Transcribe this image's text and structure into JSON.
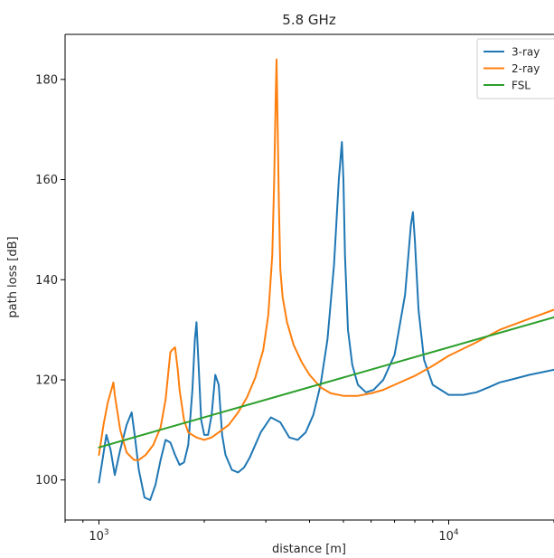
{
  "chart_data": {
    "type": "line",
    "title": "5.8 GHz",
    "xlabel": "distance [m]",
    "ylabel": "path loss [dB]",
    "xscale": "log",
    "xlim": [
      800,
      20000
    ],
    "ylim": [
      92,
      189
    ],
    "xticks": [
      {
        "value": 1000,
        "base": "10",
        "exp": "3"
      },
      {
        "value": 10000,
        "base": "10",
        "exp": "4"
      }
    ],
    "yticks": [
      100,
      120,
      140,
      160,
      180
    ],
    "grid": false,
    "legend": "top-right",
    "series": [
      {
        "name": "3-ray",
        "color": "#1f77b4",
        "x": [
          1000,
          1050,
          1080,
          1110,
          1150,
          1200,
          1240,
          1270,
          1300,
          1350,
          1400,
          1450,
          1500,
          1550,
          1600,
          1650,
          1700,
          1750,
          1800,
          1850,
          1880,
          1900,
          1930,
          1960,
          2000,
          2050,
          2100,
          2150,
          2200,
          2250,
          2300,
          2400,
          2500,
          2600,
          2700,
          2900,
          3100,
          3300,
          3500,
          3700,
          3900,
          4100,
          4300,
          4500,
          4700,
          4850,
          4950,
          5000,
          5050,
          5150,
          5300,
          5500,
          5800,
          6100,
          6500,
          7000,
          7500,
          7800,
          7900,
          8000,
          8200,
          8500,
          9000,
          10000,
          11000,
          12000,
          13000,
          14000,
          15000,
          17000,
          20000
        ],
        "y": [
          99.5,
          109,
          106,
          101,
          106,
          111,
          113.5,
          108,
          102,
          96.5,
          96,
          99,
          104,
          108,
          107.5,
          105,
          103,
          103.5,
          107,
          118,
          128,
          131.5,
          122,
          112,
          109,
          109,
          113,
          121,
          119,
          109,
          105,
          102,
          101.5,
          102.5,
          104.5,
          109.5,
          112.5,
          111.5,
          108.5,
          108,
          109.5,
          113,
          119,
          128,
          143,
          160,
          167.5,
          160,
          145,
          130,
          123,
          119,
          117.5,
          118,
          120,
          125,
          137,
          151,
          153.5,
          148,
          134,
          124,
          119,
          117,
          117,
          117.5,
          118.5,
          119.5,
          120,
          121,
          122
        ]
      },
      {
        "name": "2-ray",
        "color": "#ff7f0e",
        "x": [
          1000,
          1030,
          1060,
          1090,
          1100,
          1110,
          1150,
          1200,
          1260,
          1300,
          1360,
          1430,
          1500,
          1550,
          1600,
          1620,
          1650,
          1680,
          1700,
          1750,
          1800,
          1900,
          2000,
          2100,
          2200,
          2350,
          2500,
          2650,
          2800,
          2950,
          3050,
          3130,
          3170,
          3200,
          3220,
          3240,
          3270,
          3300,
          3350,
          3450,
          3600,
          3800,
          4000,
          4300,
          4600,
          5000,
          5500,
          6000,
          6500,
          7000,
          8000,
          9000,
          10000,
          12000,
          14000,
          17000,
          20000
        ],
        "y": [
          105,
          111,
          115.5,
          118.5,
          119.5,
          117,
          110,
          105.5,
          104,
          104,
          105,
          107,
          110.5,
          116,
          125.5,
          126,
          126.5,
          122,
          118,
          112,
          109.5,
          108.5,
          108,
          108.5,
          109.5,
          111,
          113.5,
          116.5,
          120.5,
          126,
          133,
          145,
          160,
          176,
          184,
          172,
          155,
          142,
          136.5,
          131.5,
          127,
          123.5,
          121,
          118.5,
          117.3,
          116.8,
          116.8,
          117.3,
          118,
          119,
          120.8,
          122.8,
          124.8,
          127.5,
          130,
          132.2,
          134
        ]
      },
      {
        "name": "FSL",
        "color": "#2ca02c",
        "x": [
          1000,
          20000
        ],
        "y": [
          106.5,
          132.5
        ]
      }
    ]
  }
}
